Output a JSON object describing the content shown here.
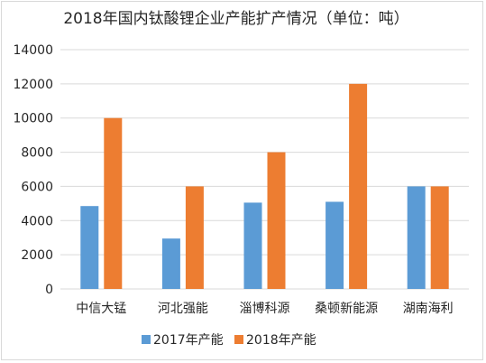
{
  "chart_data": {
    "type": "bar",
    "title": "2018年国内钛酸锂企业产能扩产情况（单位：吨）",
    "categories": [
      "中信大锰",
      "河北强能",
      "淄博科源",
      "桑顿新能源",
      "湖南海利"
    ],
    "series": [
      {
        "name": "2017年产能",
        "values": [
          4850,
          2950,
          5050,
          5100,
          6000
        ],
        "color": "#5b9bd5"
      },
      {
        "name": "2018年产能",
        "values": [
          10000,
          6000,
          8000,
          12000,
          6000
        ],
        "color": "#ed7d31"
      }
    ],
    "ylim": [
      0,
      14000
    ],
    "yticks": [
      "0",
      "2000",
      "4000",
      "6000",
      "8000",
      "10000",
      "12000",
      "14000"
    ],
    "grid": true,
    "legend": "bottom"
  }
}
